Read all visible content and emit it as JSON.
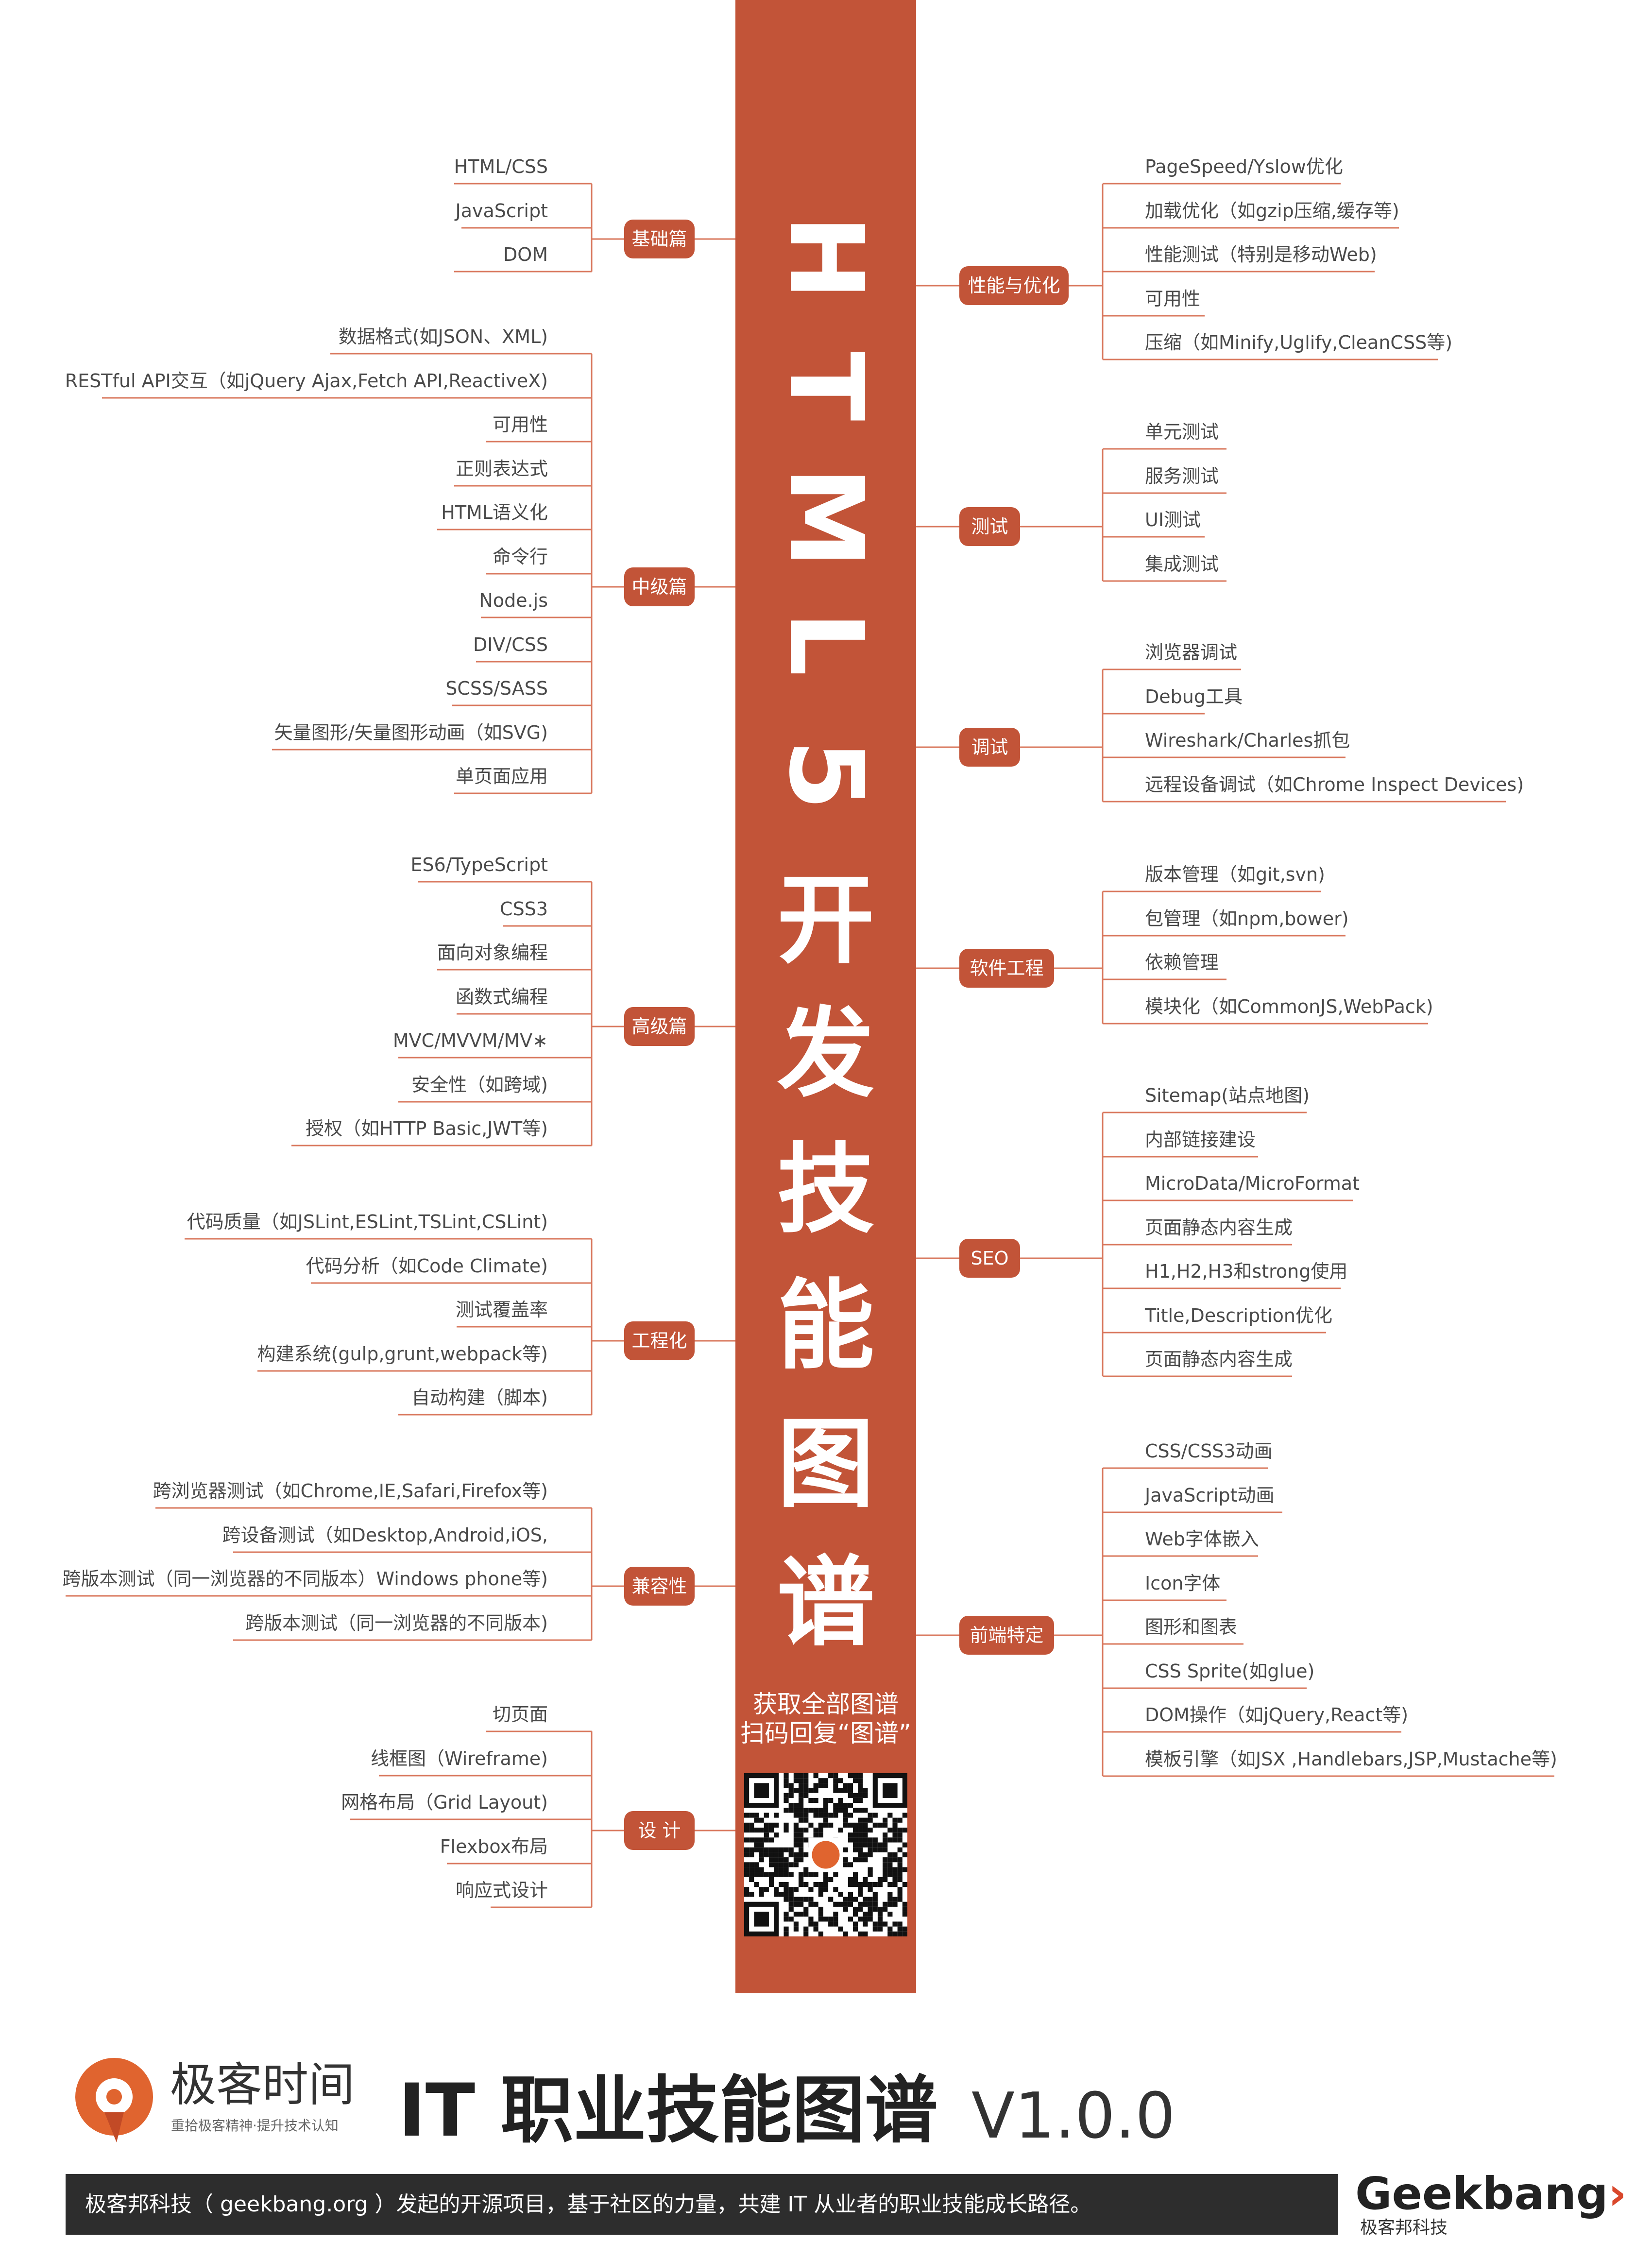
{
  "title_chars": [
    "H",
    "T",
    "M",
    "L",
    "5",
    "开",
    "发",
    "技",
    "能",
    "图",
    "谱"
  ],
  "cta_line1": "获取全部图谱",
  "cta_line2": "扫码回复“图谱”",
  "colors": {
    "accent": "#c25438",
    "line": "#d9785e",
    "text": "#4a4a4a",
    "band": "#2d2d2d"
  },
  "left_branches": [
    {
      "label": "基础篇",
      "items": [
        "HTML/CSS",
        "JavaScript",
        "DOM"
      ]
    },
    {
      "label": "中级篇",
      "items": [
        "数据格式(如JSON、XML)",
        "RESTful API交互（如jQuery Ajax,Fetch API,ReactiveX)",
        "可用性",
        "正则表达式",
        "HTML语义化",
        "命令行",
        "Node.js",
        "DIV/CSS",
        "SCSS/SASS",
        "矢量图形/矢量图形动画（如SVG)",
        "单页面应用"
      ]
    },
    {
      "label": "高级篇",
      "items": [
        "ES6/TypeScript",
        "CSS3",
        "面向对象编程",
        "函数式编程",
        "MVC/MVVM/MV∗",
        "安全性（如跨域)",
        "授权（如HTTP Basic,JWT等)"
      ]
    },
    {
      "label": "工程化",
      "items": [
        "代码质量（如JSLint,ESLint,TSLint,CSLint)",
        "代码分析（如Code  Climate)",
        "测试覆盖率",
        "构建系统(gulp,grunt,webpack等)",
        "自动构建（脚本)"
      ]
    },
    {
      "label": "兼容性",
      "items": [
        "跨浏览器测试（如Chrome,IE,Safari,Firefox等)",
        "跨设备测试（如Desktop,Android,iOS,",
        "跨版本测试（同一浏览器的不同版本）Windows phone等)",
        "跨版本测试（同一浏览器的不同版本)"
      ]
    },
    {
      "label": "设 计",
      "items": [
        "切页面",
        "线框图（Wireframe)",
        "网格布局（Grid Layout)",
        "Flexbox布局",
        "响应式设计"
      ]
    }
  ],
  "right_branches": [
    {
      "label": "性能与优化",
      "items": [
        "PageSpeed/Yslow优化",
        "加载优化（如gzip压缩,缓存等)",
        "性能测试（特别是移动Web)",
        "可用性",
        "压缩（如Minify,Uglify,CleanCSS等)"
      ]
    },
    {
      "label": "测试",
      "items": [
        "单元测试",
        "服务测试",
        "UI测试",
        "集成测试"
      ]
    },
    {
      "label": "调试",
      "items": [
        "浏览器调试",
        "Debug工具",
        "Wireshark/Charles抓包",
        "远程设备调试（如Chrome Inspect Devices)"
      ]
    },
    {
      "label": "软件工程",
      "items": [
        "版本管理（如git,svn)",
        "包管理（如npm,bower)",
        "依赖管理",
        "模块化（如CommonJS,WebPack)"
      ]
    },
    {
      "label": "SEO",
      "items": [
        "Sitemap(站点地图)",
        "内部链接建设",
        "MicroData/MicroFormat",
        "页面静态内容生成",
        "H1,H2,H3和strong使用",
        "Title,Description优化",
        "页面静态内容生成"
      ]
    },
    {
      "label": "前端特定",
      "items": [
        "CSS/CSS3动画",
        "JavaScript动画",
        "Web字体嵌入",
        "Icon字体",
        "图形和图表",
        "CSS Sprite(如glue)",
        "DOM操作（如jQuery,React等)",
        "模板引擎（如JSX ,Handlebars,JSP,Mustache等)"
      ]
    }
  ],
  "footer": {
    "logo_name": "极客时间",
    "logo_slogan": "重拾极客精神·提升技术认知",
    "title": "IT 职业技能图谱",
    "version": "V1.0.0",
    "band_text": "极客邦科技（ geekbang.org ）发起的开源项目，基于社区的力量，共建 IT 从业者的职业技能成长路径。",
    "brand_a": "Geek",
    "brand_b": "bang",
    "brand_mark": "›",
    "brand_cn": "极客邦科技"
  }
}
